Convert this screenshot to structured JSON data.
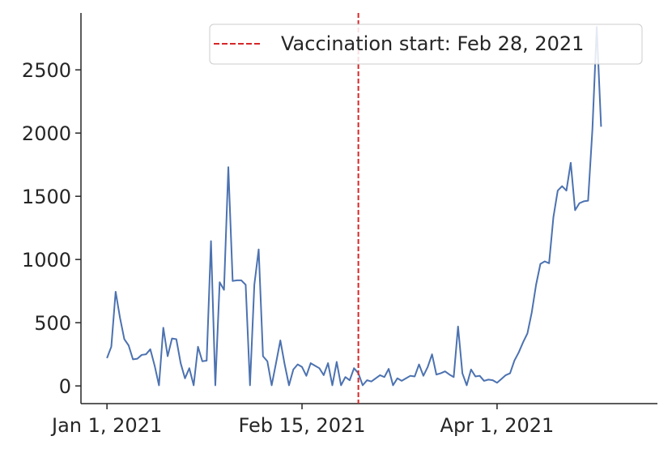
{
  "chart_data": {
    "type": "line",
    "title": "",
    "xlabel": "",
    "ylabel": "",
    "x_start": "2021-01-01",
    "x_end": "2021-05-02",
    "xlim": [
      "2020-12-26",
      "2021-05-08"
    ],
    "ylim": [
      -140,
      2950
    ],
    "x_ticks": [
      {
        "date": "2021-01-01",
        "label": "Jan 1, 2021"
      },
      {
        "date": "2021-02-15",
        "label": "Feb 15, 2021"
      },
      {
        "date": "2021-04-01",
        "label": "Apr 1, 2021"
      }
    ],
    "y_ticks": [
      0,
      500,
      1000,
      1500,
      2000,
      2500
    ],
    "grid": false,
    "series": [
      {
        "color": "#4c72b0",
        "values": [
          220,
          310,
          745,
          540,
          370,
          320,
          210,
          215,
          245,
          250,
          290,
          160,
          5,
          460,
          235,
          375,
          370,
          180,
          60,
          140,
          5,
          310,
          195,
          200,
          1145,
          5,
          820,
          760,
          1730,
          830,
          835,
          835,
          800,
          5,
          800,
          1080,
          235,
          195,
          5,
          180,
          360,
          170,
          5,
          130,
          170,
          150,
          80,
          180,
          160,
          140,
          85,
          180,
          5,
          190,
          5,
          70,
          45,
          140,
          100,
          5,
          45,
          35,
          60,
          85,
          70,
          135,
          5,
          60,
          40,
          60,
          80,
          75,
          170,
          80,
          150,
          250,
          90,
          100,
          115,
          90,
          70,
          470,
          100,
          5,
          130,
          75,
          80,
          40,
          50,
          45,
          25,
          55,
          85,
          100,
          200,
          265,
          345,
          415,
          580,
          800,
          965,
          985,
          970,
          1335,
          1545,
          1580,
          1545,
          1765,
          1390,
          1445,
          1460,
          1465,
          2030,
          2840,
          2050
        ]
      }
    ],
    "vline": {
      "date": "2021-02-28",
      "color": "#d62728"
    },
    "legend": {
      "position": "top-right",
      "label": "Vaccination start: Feb 28, 2021"
    }
  }
}
